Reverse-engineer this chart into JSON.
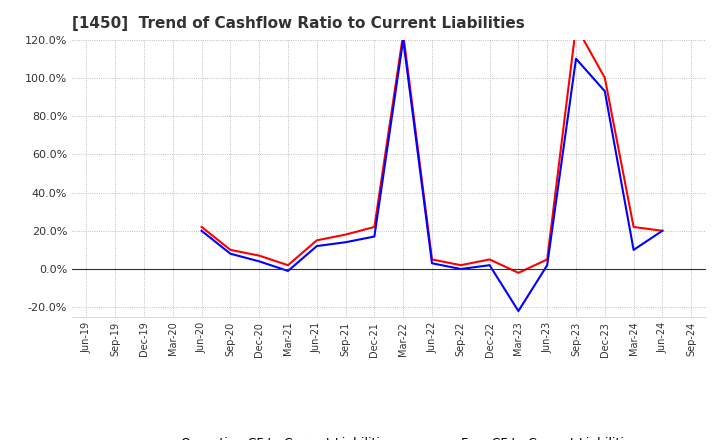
{
  "title": "[1450]  Trend of Cashflow Ratio to Current Liabilities",
  "title_color": "#333333",
  "background_color": "#ffffff",
  "grid_color": "#aaaaaa",
  "ylim": [
    -0.25,
    0.135
  ],
  "yticks": [
    -0.2,
    0.0,
    0.2,
    0.4,
    0.6,
    0.8,
    1.0,
    1.2
  ],
  "x_labels": [
    "Jun-19",
    "Sep-19",
    "Dec-19",
    "Mar-20",
    "Jun-20",
    "Sep-20",
    "Dec-20",
    "Mar-21",
    "Jun-21",
    "Sep-21",
    "Dec-21",
    "Mar-22",
    "Jun-22",
    "Sep-22",
    "Dec-22",
    "Mar-23",
    "Jun-23",
    "Sep-23",
    "Dec-23",
    "Mar-24",
    "Jun-24",
    "Sep-24"
  ],
  "operating_cf": [
    null,
    null,
    null,
    null,
    0.22,
    0.1,
    0.07,
    0.02,
    0.15,
    0.18,
    0.22,
    1.23,
    0.05,
    0.02,
    0.05,
    -0.02,
    0.05,
    1.27,
    1.0,
    0.22,
    0.2,
    null
  ],
  "free_cf": [
    null,
    null,
    null,
    null,
    0.2,
    0.08,
    0.04,
    -0.01,
    0.12,
    0.14,
    0.17,
    1.2,
    0.03,
    0.0,
    0.02,
    -0.22,
    0.02,
    1.1,
    0.93,
    0.1,
    0.2,
    null
  ],
  "operating_color": "#ff0000",
  "free_color": "#0000ff",
  "line_width": 1.5,
  "legend_operating": "Operating CF to Current Liabilities",
  "legend_free": "Free CF to Current Liabilities"
}
